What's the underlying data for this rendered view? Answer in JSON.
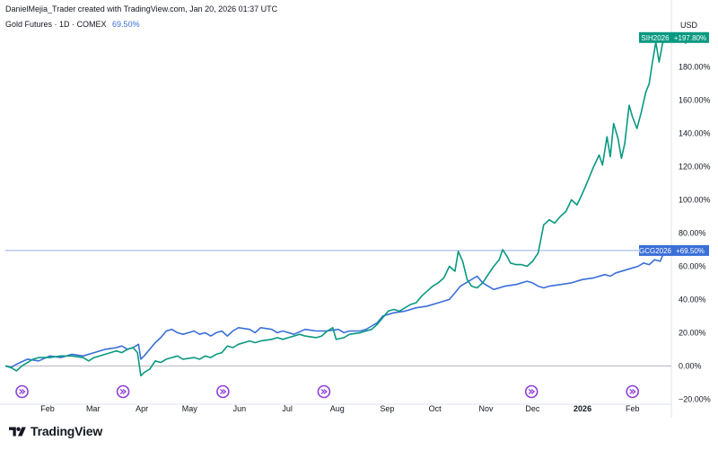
{
  "header": {
    "credit": "DanielMejia_Trader created with TradingView.com, Jan 20, 2026 01:37 UTC"
  },
  "legend": {
    "symbol_text": "Gold Futures · 1D · COMEX",
    "value": "69.50%"
  },
  "axis_units": {
    "currency": "USD",
    "unit": "apoz"
  },
  "brand": {
    "name": "TradingView"
  },
  "colors": {
    "silver": "#089981",
    "gold": "#3a6fd8",
    "grid": "#e0e3eb",
    "zero": "#b2b5be",
    "badge_icon": "#8f3fd8"
  },
  "chart_data": {
    "type": "line",
    "title": "Gold Futures · 1D · COMEX",
    "xlabel": "",
    "ylabel": "%",
    "ylim": [
      -22,
      215
    ],
    "x_ticks": [
      {
        "label": "Feb",
        "t": 3.8,
        "bold": false
      },
      {
        "label": "Mar",
        "t": 7.9,
        "bold": false
      },
      {
        "label": "Apr",
        "t": 12.3,
        "bold": false
      },
      {
        "label": "May",
        "t": 16.6,
        "bold": false
      },
      {
        "label": "Jun",
        "t": 21.1,
        "bold": false
      },
      {
        "label": "Jul",
        "t": 25.4,
        "bold": false
      },
      {
        "label": "Aug",
        "t": 29.9,
        "bold": false
      },
      {
        "label": "Sep",
        "t": 34.4,
        "bold": false
      },
      {
        "label": "Oct",
        "t": 38.7,
        "bold": false
      },
      {
        "label": "Nov",
        "t": 43.3,
        "bold": false
      },
      {
        "label": "Dec",
        "t": 47.5,
        "bold": false
      },
      {
        "label": "2026",
        "t": 52.0,
        "bold": true
      },
      {
        "label": "Feb",
        "t": 56.5,
        "bold": false
      }
    ],
    "y_ticks": [
      -20,
      0,
      20,
      40,
      60,
      80,
      100,
      120,
      140,
      160,
      180
    ],
    "y_tick_labels": [
      "−20.00%",
      "0.00%",
      "20.00%",
      "40.00%",
      "60.00%",
      "80.00%",
      "100.00%",
      "120.00%",
      "140.00%",
      "160.00%",
      "180.00%"
    ],
    "event_markers": [
      1.5,
      10.6,
      19.6,
      28.7,
      47.4,
      56.5
    ],
    "series": [
      {
        "name": "SIH2026",
        "label": "+197.80%",
        "color": "#089981",
        "points": [
          [
            0,
            0
          ],
          [
            0.5,
            -1
          ],
          [
            1,
            -3
          ],
          [
            1.5,
            0
          ],
          [
            2,
            2
          ],
          [
            2.5,
            4
          ],
          [
            3,
            5
          ],
          [
            4,
            5
          ],
          [
            5,
            6
          ],
          [
            6,
            6
          ],
          [
            7,
            5
          ],
          [
            7.5,
            3
          ],
          [
            8,
            5
          ],
          [
            9,
            7
          ],
          [
            10,
            9
          ],
          [
            10.5,
            8
          ],
          [
            11,
            10
          ],
          [
            11.5,
            11
          ],
          [
            11.9,
            8
          ],
          [
            12.2,
            -6
          ],
          [
            12.5,
            -4
          ],
          [
            13,
            -2
          ],
          [
            13.5,
            3
          ],
          [
            14,
            2
          ],
          [
            14.5,
            4
          ],
          [
            15,
            5
          ],
          [
            15.5,
            6
          ],
          [
            16,
            4
          ],
          [
            17,
            5
          ],
          [
            17.5,
            4
          ],
          [
            18,
            6
          ],
          [
            18.5,
            5
          ],
          [
            19,
            7
          ],
          [
            19.5,
            8
          ],
          [
            20,
            12
          ],
          [
            20.5,
            11
          ],
          [
            21,
            13
          ],
          [
            22,
            15
          ],
          [
            22.5,
            14
          ],
          [
            23,
            15
          ],
          [
            24,
            16
          ],
          [
            24.5,
            17
          ],
          [
            25,
            16
          ],
          [
            25.5,
            17
          ],
          [
            26,
            18
          ],
          [
            26.5,
            19
          ],
          [
            27,
            18
          ],
          [
            28,
            17
          ],
          [
            28.5,
            18
          ],
          [
            29,
            21
          ],
          [
            29.5,
            23
          ],
          [
            29.8,
            16
          ],
          [
            30.5,
            17
          ],
          [
            31,
            19
          ],
          [
            32,
            20
          ],
          [
            32.5,
            21
          ],
          [
            33,
            22
          ],
          [
            33.5,
            25
          ],
          [
            34,
            29
          ],
          [
            34.5,
            33
          ],
          [
            35,
            34
          ],
          [
            35.5,
            33
          ],
          [
            36,
            35
          ],
          [
            36.5,
            37
          ],
          [
            37,
            38
          ],
          [
            37.5,
            42
          ],
          [
            38,
            45
          ],
          [
            38.5,
            48
          ],
          [
            39,
            50
          ],
          [
            39.5,
            53
          ],
          [
            40,
            60
          ],
          [
            40.5,
            57
          ],
          [
            40.8,
            69
          ],
          [
            41.2,
            63
          ],
          [
            41.6,
            52
          ],
          [
            42,
            48
          ],
          [
            42.5,
            47
          ],
          [
            43,
            50
          ],
          [
            43.5,
            55
          ],
          [
            44,
            60
          ],
          [
            44.5,
            64
          ],
          [
            44.8,
            70
          ],
          [
            45.2,
            66
          ],
          [
            45.5,
            62
          ],
          [
            46,
            61
          ],
          [
            46.5,
            61
          ],
          [
            47,
            60
          ],
          [
            47.5,
            63
          ],
          [
            48,
            68
          ],
          [
            48.5,
            85
          ],
          [
            49,
            88
          ],
          [
            49.5,
            86
          ],
          [
            50,
            90
          ],
          [
            50.5,
            93
          ],
          [
            51,
            100
          ],
          [
            51.5,
            97
          ],
          [
            52,
            104
          ],
          [
            52.5,
            112
          ],
          [
            53,
            120
          ],
          [
            53.5,
            127
          ],
          [
            53.8,
            121
          ],
          [
            54.2,
            138
          ],
          [
            54.5,
            126
          ],
          [
            54.8,
            146
          ],
          [
            55.2,
            137
          ],
          [
            55.5,
            125
          ],
          [
            55.8,
            134
          ],
          [
            56.2,
            157
          ],
          [
            56.5,
            150
          ],
          [
            56.9,
            143
          ],
          [
            57.3,
            153
          ],
          [
            57.7,
            165
          ],
          [
            58,
            170
          ],
          [
            58.3,
            183
          ],
          [
            58.6,
            195
          ],
          [
            58.9,
            183
          ],
          [
            59.2,
            194
          ],
          [
            59.4,
            197.8
          ]
        ]
      },
      {
        "name": "GCG2026",
        "label": "+69.50%",
        "color": "#3a6fd8",
        "points": [
          [
            0,
            0
          ],
          [
            0.5,
            -1
          ],
          [
            1,
            1
          ],
          [
            2,
            4
          ],
          [
            3,
            3
          ],
          [
            4,
            6
          ],
          [
            5,
            5
          ],
          [
            6,
            7
          ],
          [
            7,
            6
          ],
          [
            8,
            8
          ],
          [
            9,
            10
          ],
          [
            10,
            11
          ],
          [
            10.5,
            12
          ],
          [
            11,
            10
          ],
          [
            11.5,
            11
          ],
          [
            12,
            13
          ],
          [
            12.2,
            4
          ],
          [
            12.5,
            6
          ],
          [
            13,
            10
          ],
          [
            13.5,
            14
          ],
          [
            14,
            17
          ],
          [
            14.5,
            21
          ],
          [
            15,
            22
          ],
          [
            15.5,
            20
          ],
          [
            16,
            19
          ],
          [
            16.5,
            20
          ],
          [
            17,
            21
          ],
          [
            17.5,
            19
          ],
          [
            18,
            20
          ],
          [
            18.5,
            18
          ],
          [
            19,
            20
          ],
          [
            19.5,
            21
          ],
          [
            20,
            18
          ],
          [
            20.5,
            21
          ],
          [
            21,
            23
          ],
          [
            22,
            22
          ],
          [
            22.5,
            20
          ],
          [
            23,
            23
          ],
          [
            24,
            22
          ],
          [
            24.5,
            20
          ],
          [
            25,
            21
          ],
          [
            26,
            19
          ],
          [
            27,
            22
          ],
          [
            28,
            21
          ],
          [
            29,
            21
          ],
          [
            30,
            22
          ],
          [
            30.5,
            20
          ],
          [
            31,
            21
          ],
          [
            32,
            21
          ],
          [
            32.5,
            22
          ],
          [
            33,
            24
          ],
          [
            33.5,
            26
          ],
          [
            34,
            30
          ],
          [
            35,
            32
          ],
          [
            36,
            33
          ],
          [
            37,
            35
          ],
          [
            38,
            36
          ],
          [
            39,
            38
          ],
          [
            40,
            40
          ],
          [
            40.5,
            44
          ],
          [
            41,
            48
          ],
          [
            41.5,
            50
          ],
          [
            42,
            52
          ],
          [
            42.5,
            54
          ],
          [
            43,
            50
          ],
          [
            43.5,
            48
          ],
          [
            44,
            46
          ],
          [
            45,
            48
          ],
          [
            46,
            49
          ],
          [
            47,
            51
          ],
          [
            47.5,
            50
          ],
          [
            48,
            48
          ],
          [
            48.5,
            47
          ],
          [
            49,
            48
          ],
          [
            50,
            49
          ],
          [
            51,
            50
          ],
          [
            52,
            52
          ],
          [
            53,
            53
          ],
          [
            54,
            55
          ],
          [
            54.5,
            54
          ],
          [
            55,
            56
          ],
          [
            56,
            58
          ],
          [
            56.5,
            59
          ],
          [
            57,
            60
          ],
          [
            57.5,
            62
          ],
          [
            58,
            61
          ],
          [
            58.5,
            64
          ],
          [
            59,
            63
          ],
          [
            59.4,
            69.5
          ]
        ]
      }
    ]
  }
}
